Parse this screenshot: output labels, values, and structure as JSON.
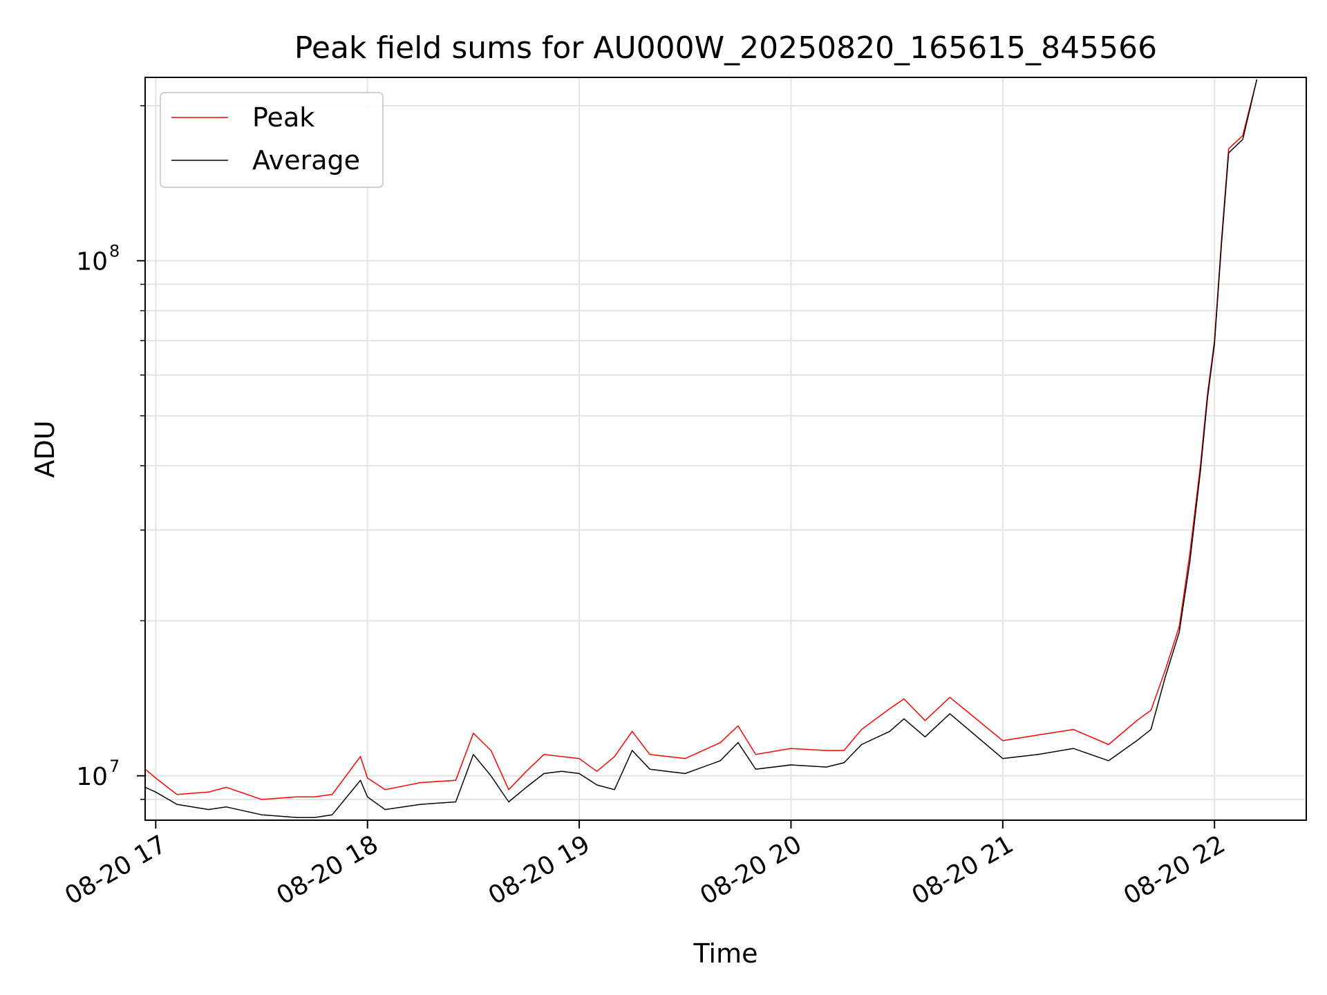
{
  "chart_data": {
    "type": "line",
    "title": "Peak field sums for AU000W_20250820_165615_845566",
    "xlabel": "Time",
    "ylabel": "ADU",
    "y_scale": "log",
    "ylim": [
      8200000,
      227000000
    ],
    "xlim": [
      "2025-08-20 16:57",
      "2025-08-20 22:26"
    ],
    "grid": true,
    "legend_position": "upper-left",
    "x_tick_labels": [
      "08-20 17",
      "08-20 18",
      "08-20 19",
      "08-20 20",
      "08-20 21",
      "08-20 22"
    ],
    "x_ticks": [
      "2025-08-20 17:00",
      "2025-08-20 18:00",
      "2025-08-20 19:00",
      "2025-08-20 20:00",
      "2025-08-20 21:00",
      "2025-08-20 22:00"
    ],
    "y_tick_labels": [
      {
        "base": "10",
        "exp": "7"
      },
      {
        "base": "10",
        "exp": "8"
      }
    ],
    "y_ticks": [
      10000000,
      100000000
    ],
    "colors": {
      "peak": "#ff0000",
      "average": "#000000"
    },
    "series": [
      {
        "name": "Peak",
        "color": "#ff0000",
        "x": [
          "2025-08-20 16:57",
          "2025-08-20 17:00",
          "2025-08-20 17:06",
          "2025-08-20 17:15",
          "2025-08-20 17:20",
          "2025-08-20 17:30",
          "2025-08-20 17:40",
          "2025-08-20 17:45",
          "2025-08-20 17:50",
          "2025-08-20 17:58",
          "2025-08-20 18:00",
          "2025-08-20 18:05",
          "2025-08-20 18:15",
          "2025-08-20 18:25",
          "2025-08-20 18:30",
          "2025-08-20 18:35",
          "2025-08-20 18:40",
          "2025-08-20 18:45",
          "2025-08-20 18:50",
          "2025-08-20 18:55",
          "2025-08-20 19:00",
          "2025-08-20 19:05",
          "2025-08-20 19:10",
          "2025-08-20 19:15",
          "2025-08-20 19:20",
          "2025-08-20 19:30",
          "2025-08-20 19:40",
          "2025-08-20 19:45",
          "2025-08-20 19:50",
          "2025-08-20 20:00",
          "2025-08-20 20:10",
          "2025-08-20 20:15",
          "2025-08-20 20:20",
          "2025-08-20 20:28",
          "2025-08-20 20:32",
          "2025-08-20 20:38",
          "2025-08-20 20:45",
          "2025-08-20 21:00",
          "2025-08-20 21:10",
          "2025-08-20 21:20",
          "2025-08-20 21:30",
          "2025-08-20 21:38",
          "2025-08-20 21:42",
          "2025-08-20 21:46",
          "2025-08-20 21:50",
          "2025-08-20 21:53",
          "2025-08-20 21:56",
          "2025-08-20 21:58",
          "2025-08-20 22:00",
          "2025-08-20 22:02",
          "2025-08-20 22:04",
          "2025-08-20 22:08",
          "2025-08-20 22:12"
        ],
        "values": [
          10300000,
          9900000,
          9200000,
          9300000,
          9500000,
          9000000,
          9100000,
          9100000,
          9200000,
          10900000,
          9900000,
          9400000,
          9700000,
          9800000,
          12100000,
          11200000,
          9400000,
          10200000,
          11000000,
          10900000,
          10800000,
          10200000,
          10900000,
          12200000,
          11000000,
          10800000,
          11600000,
          12500000,
          11000000,
          11300000,
          11200000,
          11200000,
          12300000,
          13500000,
          14100000,
          12800000,
          14200000,
          11700000,
          12000000,
          12300000,
          11500000,
          12800000,
          13400000,
          16000000,
          19500000,
          27000000,
          40000000,
          55000000,
          70000000,
          110000000,
          165000000,
          175000000,
          225000000
        ]
      },
      {
        "name": "Average",
        "color": "#000000",
        "x": [
          "2025-08-20 16:57",
          "2025-08-20 17:00",
          "2025-08-20 17:06",
          "2025-08-20 17:15",
          "2025-08-20 17:20",
          "2025-08-20 17:30",
          "2025-08-20 17:40",
          "2025-08-20 17:45",
          "2025-08-20 17:50",
          "2025-08-20 17:58",
          "2025-08-20 18:00",
          "2025-08-20 18:05",
          "2025-08-20 18:15",
          "2025-08-20 18:25",
          "2025-08-20 18:30",
          "2025-08-20 18:35",
          "2025-08-20 18:40",
          "2025-08-20 18:45",
          "2025-08-20 18:50",
          "2025-08-20 18:55",
          "2025-08-20 19:00",
          "2025-08-20 19:05",
          "2025-08-20 19:10",
          "2025-08-20 19:15",
          "2025-08-20 19:20",
          "2025-08-20 19:30",
          "2025-08-20 19:40",
          "2025-08-20 19:45",
          "2025-08-20 19:50",
          "2025-08-20 20:00",
          "2025-08-20 20:10",
          "2025-08-20 20:15",
          "2025-08-20 20:20",
          "2025-08-20 20:28",
          "2025-08-20 20:32",
          "2025-08-20 20:38",
          "2025-08-20 20:45",
          "2025-08-20 21:00",
          "2025-08-20 21:10",
          "2025-08-20 21:20",
          "2025-08-20 21:30",
          "2025-08-20 21:38",
          "2025-08-20 21:42",
          "2025-08-20 21:46",
          "2025-08-20 21:50",
          "2025-08-20 21:53",
          "2025-08-20 21:56",
          "2025-08-20 21:58",
          "2025-08-20 22:00",
          "2025-08-20 22:02",
          "2025-08-20 22:04",
          "2025-08-20 22:08",
          "2025-08-20 22:12"
        ],
        "values": [
          9500000,
          9300000,
          8800000,
          8600000,
          8700000,
          8400000,
          8300000,
          8300000,
          8400000,
          9800000,
          9100000,
          8600000,
          8800000,
          8900000,
          11000000,
          10000000,
          8900000,
          9500000,
          10100000,
          10200000,
          10100000,
          9600000,
          9400000,
          11200000,
          10300000,
          10100000,
          10700000,
          11600000,
          10300000,
          10500000,
          10400000,
          10600000,
          11500000,
          12200000,
          12900000,
          11900000,
          13200000,
          10800000,
          11000000,
          11300000,
          10700000,
          11700000,
          12300000,
          15500000,
          19000000,
          26000000,
          39000000,
          54000000,
          69000000,
          108000000,
          162000000,
          172000000,
          225000000
        ]
      }
    ]
  }
}
